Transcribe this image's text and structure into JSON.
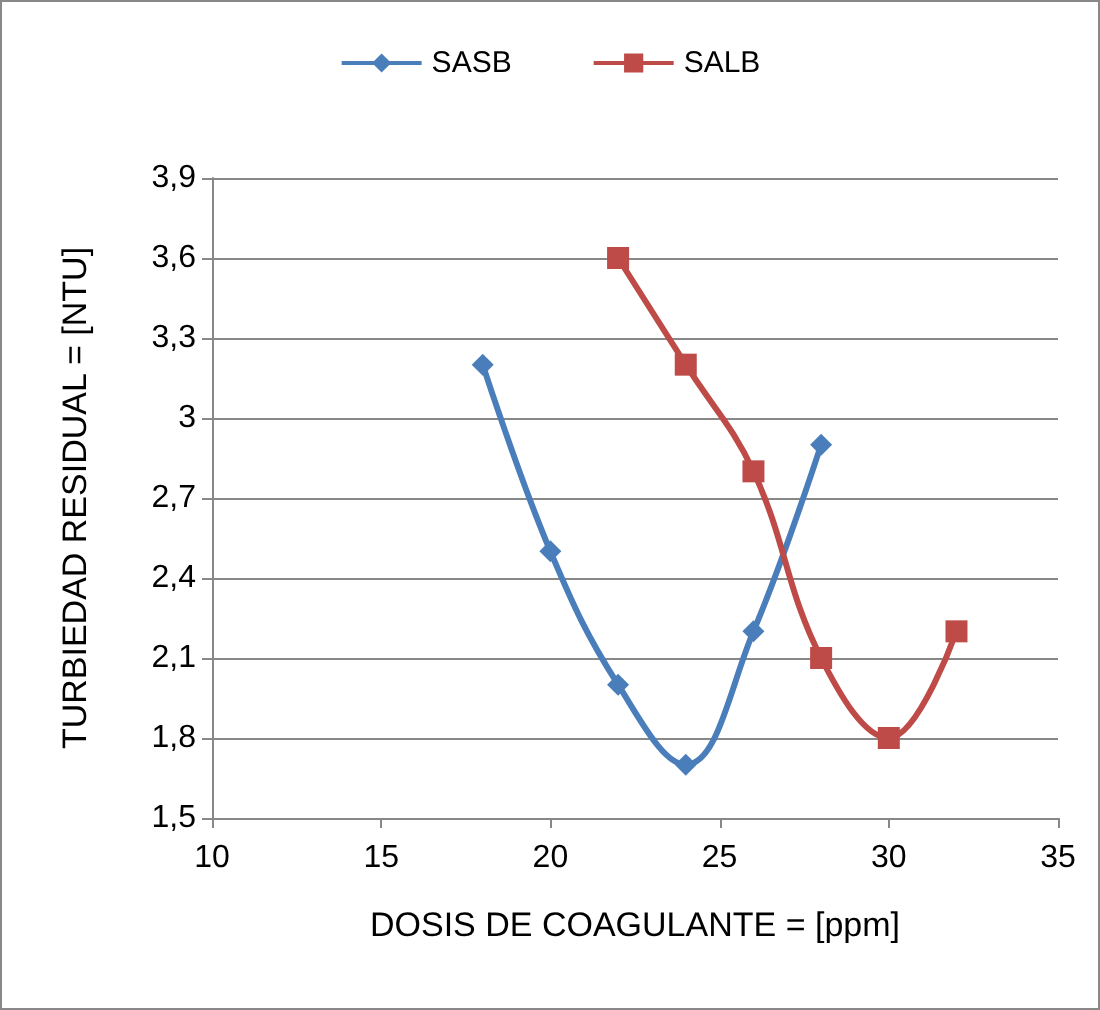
{
  "chart_data": {
    "type": "line",
    "xlabel": "DOSIS DE COAGULANTE = [ppm]",
    "ylabel": "TURBIEDAD RESIDUAL = [NTU]",
    "series": [
      {
        "name": "SASB",
        "color": "#4a7ebb",
        "marker": "diamond",
        "x": [
          18,
          20,
          22,
          24,
          26,
          28
        ],
        "values": [
          3.2,
          2.5,
          2.0,
          1.7,
          2.2,
          2.9
        ]
      },
      {
        "name": "SALB",
        "color": "#be4b48",
        "marker": "square",
        "x": [
          22,
          24,
          26,
          28,
          30,
          32
        ],
        "values": [
          3.6,
          3.2,
          2.8,
          2.1,
          1.8,
          2.2
        ]
      }
    ],
    "xlim": [
      10,
      35
    ],
    "xticks": [
      10,
      15,
      20,
      25,
      30,
      35
    ],
    "ylim": [
      1.5,
      3.9
    ],
    "yticks": [
      {
        "value": 1.5,
        "label": "1,5"
      },
      {
        "value": 1.8,
        "label": "1,8"
      },
      {
        "value": 2.1,
        "label": "2,1"
      },
      {
        "value": 2.4,
        "label": "2,4"
      },
      {
        "value": 2.7,
        "label": "2,7"
      },
      {
        "value": 3,
        "label": "3"
      },
      {
        "value": 3.3,
        "label": "3,3"
      },
      {
        "value": 3.6,
        "label": "3,6"
      },
      {
        "value": 3.9,
        "label": "3,9"
      }
    ],
    "grid": "y",
    "legend": "top",
    "line_style": "solid"
  }
}
